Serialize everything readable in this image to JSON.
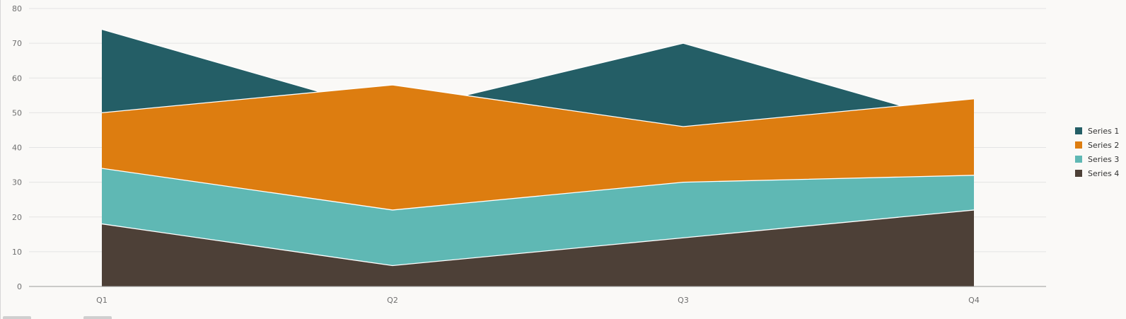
{
  "chart_data": {
    "type": "area",
    "stacked": false,
    "categories": [
      "Q1",
      "Q2",
      "Q3",
      "Q4"
    ],
    "series": [
      {
        "name": "Series 1",
        "values": [
          74,
          50,
          70,
          46
        ],
        "color": "#245e66"
      },
      {
        "name": "Series 2",
        "values": [
          50,
          58,
          46,
          54
        ],
        "color": "#dd7d10"
      },
      {
        "name": "Series 3",
        "values": [
          34,
          22,
          30,
          32
        ],
        "color": "#5fb8b4"
      },
      {
        "name": "Series 4",
        "values": [
          18,
          6,
          14,
          22
        ],
        "color": "#4d4037"
      }
    ],
    "ylim": [
      0,
      80
    ],
    "yticks": [
      0,
      10,
      20,
      30,
      40,
      50,
      60,
      70,
      80
    ],
    "grid": true,
    "legend_position": "right",
    "title": "",
    "xlabel": "",
    "ylabel": ""
  }
}
